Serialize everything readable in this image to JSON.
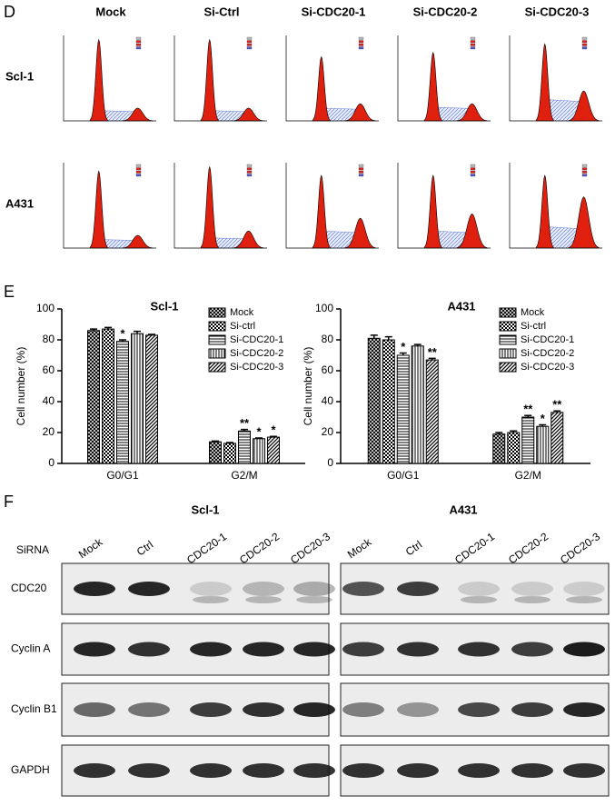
{
  "panels": {
    "d": "D",
    "e": "E",
    "f": "F"
  },
  "panel_d": {
    "columns": [
      "Mock",
      "Si-Ctrl",
      "Si-CDC20-1",
      "Si-CDC20-2",
      "Si-CDC20-3"
    ],
    "rows": [
      "Scl-1",
      "A431"
    ]
  },
  "chart_data": [
    {
      "type": "bar",
      "title": "Scl-1",
      "y_label": "Cell number (%)",
      "categories": [
        "G0/G1",
        "G2/M"
      ],
      "ylim": [
        0,
        100
      ],
      "yticks": [
        0,
        20,
        40,
        60,
        80,
        100
      ],
      "legend": "top-right",
      "series": [
        {
          "name": "Mock",
          "pattern": "crosshatch",
          "values": [
            86,
            14
          ],
          "errors": [
            1,
            0.5
          ],
          "significance": [
            null,
            null
          ]
        },
        {
          "name": "Si-ctrl",
          "pattern": "checker",
          "values": [
            87,
            13
          ],
          "errors": [
            1,
            0.5
          ],
          "significance": [
            null,
            null
          ]
        },
        {
          "name": "Si-CDC20-1",
          "pattern": "hlines",
          "values": [
            79,
            21
          ],
          "errors": [
            1,
            1
          ],
          "significance": [
            "*",
            "**"
          ]
        },
        {
          "name": "Si-CDC20-2",
          "pattern": "vlines",
          "values": [
            84,
            16
          ],
          "errors": [
            1.5,
            0.5
          ],
          "significance": [
            null,
            "*"
          ]
        },
        {
          "name": "Si-CDC20-3",
          "pattern": "diag",
          "values": [
            83,
            17
          ],
          "errors": [
            0.5,
            0.5
          ],
          "significance": [
            null,
            "*"
          ]
        }
      ]
    },
    {
      "type": "bar",
      "title": "A431",
      "y_label": "Cell number (%)",
      "categories": [
        "G0/G1",
        "G2/M"
      ],
      "ylim": [
        0,
        100
      ],
      "yticks": [
        0,
        20,
        40,
        60,
        80,
        100
      ],
      "legend": "top-right",
      "series": [
        {
          "name": "Mock",
          "pattern": "crosshatch",
          "values": [
            81,
            19
          ],
          "errors": [
            2,
            1
          ],
          "significance": [
            null,
            null
          ]
        },
        {
          "name": "Si-ctrl",
          "pattern": "checker",
          "values": [
            80,
            20
          ],
          "errors": [
            2,
            1
          ],
          "significance": [
            null,
            null
          ]
        },
        {
          "name": "Si-CDC20-1",
          "pattern": "hlines",
          "values": [
            70,
            30
          ],
          "errors": [
            1.5,
            1
          ],
          "significance": [
            "*",
            "**"
          ]
        },
        {
          "name": "Si-CDC20-2",
          "pattern": "vlines",
          "values": [
            76,
            24
          ],
          "errors": [
            1,
            1
          ],
          "significance": [
            null,
            "*"
          ]
        },
        {
          "name": "Si-CDC20-3",
          "pattern": "diag",
          "values": [
            67,
            33
          ],
          "errors": [
            1,
            1
          ],
          "significance": [
            "**",
            "**"
          ]
        }
      ]
    }
  ],
  "panel_f": {
    "titles": [
      "Scl-1",
      "A431"
    ],
    "sirna": "SiRNA",
    "lanes": [
      "Mock",
      "Ctrl",
      "CDC20-1",
      "CDC20-2",
      "CDC20-3"
    ],
    "rows": [
      "CDC20",
      "Cyclin A",
      "Cyclin B1",
      "GAPDH"
    ]
  }
}
